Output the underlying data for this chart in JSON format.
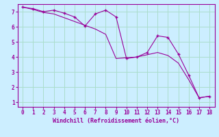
{
  "xlabel": "Windchill (Refroidissement éolien,°C)",
  "bg_color": "#cceeff",
  "line_color": "#990099",
  "grid_color": "#aaddcc",
  "line1_x": [
    0,
    1,
    2,
    3,
    4,
    5,
    6,
    7,
    8,
    9,
    10,
    11,
    12,
    13,
    14,
    15,
    16,
    17,
    18
  ],
  "line1_y": [
    7.3,
    7.2,
    7.0,
    7.1,
    6.9,
    6.65,
    6.05,
    6.85,
    7.1,
    6.65,
    3.9,
    4.0,
    4.3,
    5.4,
    5.3,
    4.2,
    2.8,
    1.3,
    1.4
  ],
  "line2_x": [
    0,
    1,
    2,
    3,
    4,
    5,
    6,
    7,
    8,
    9,
    10,
    11,
    12,
    13,
    14,
    15,
    16,
    17,
    18
  ],
  "line2_y": [
    7.3,
    7.15,
    6.95,
    6.85,
    6.6,
    6.35,
    6.1,
    5.85,
    5.5,
    3.9,
    3.95,
    4.0,
    4.15,
    4.3,
    4.1,
    3.6,
    2.5,
    1.3,
    1.4
  ],
  "xmin": 0,
  "xmax": 18,
  "ymin": 1,
  "ymax": 7,
  "xticks": [
    0,
    1,
    2,
    3,
    4,
    5,
    6,
    7,
    8,
    9,
    10,
    11,
    12,
    13,
    14,
    15,
    16,
    17,
    18
  ],
  "yticks": [
    1,
    2,
    3,
    4,
    5,
    6,
    7
  ]
}
